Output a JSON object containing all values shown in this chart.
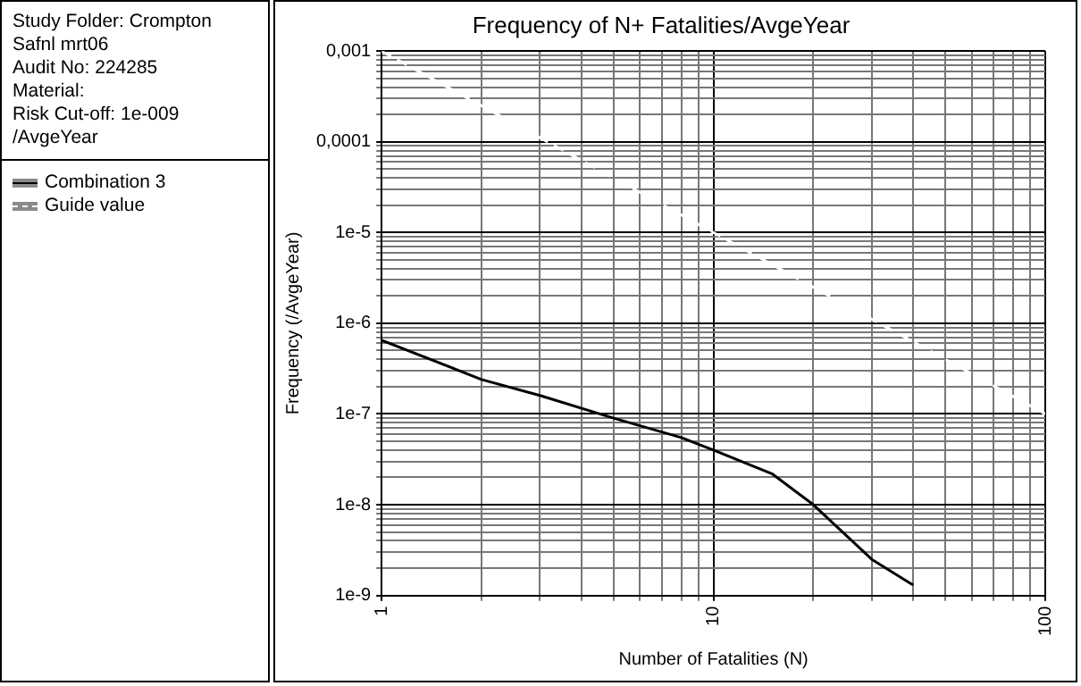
{
  "chart_data": {
    "type": "line",
    "title": "Frequency of N+ Fatalities/AvgeYear",
    "xlabel": "Number of Fatalities (N)",
    "ylabel": "Frequency (/AvgeYear)",
    "annotations": [
      "Study Folder: Crompton Safnl mrt06",
      "Audit No: 224285",
      "Material:",
      "Risk Cut-off: 1e-009 /AvgeYear"
    ],
    "log": "xy",
    "grid": true,
    "legend": "left",
    "marker": "none",
    "xlim": [
      1,
      100
    ],
    "ylim": [
      1e-09,
      0.001
    ],
    "xticks": [
      1,
      {
        "value": 2,
        "label": null
      },
      {
        "value": 3,
        "label": null
      },
      {
        "value": 4,
        "label": null
      },
      {
        "value": 5,
        "label": null
      },
      {
        "value": 6,
        "label": null
      },
      {
        "value": 7,
        "label": null
      },
      {
        "value": 8,
        "label": null
      },
      {
        "value": 9,
        "label": null
      },
      10,
      {
        "value": 20,
        "label": null
      },
      {
        "value": 30,
        "label": null
      },
      {
        "value": 40,
        "label": null
      },
      {
        "value": 50,
        "label": null
      },
      {
        "value": 60,
        "label": null
      },
      {
        "value": 70,
        "label": null
      },
      {
        "value": 80,
        "label": null
      },
      {
        "value": 90,
        "label": null
      },
      100
    ],
    "yticks": [
      {
        "value": 1e-09,
        "label": "1e-9"
      },
      {
        "value": 2e-09,
        "label": null
      },
      {
        "value": 3e-09,
        "label": null
      },
      {
        "value": 4e-09,
        "label": null
      },
      {
        "value": 5e-09,
        "label": null
      },
      {
        "value": 6e-09,
        "label": null
      },
      {
        "value": 7e-09,
        "label": null
      },
      {
        "value": 8e-09,
        "label": null
      },
      {
        "value": 9e-09,
        "label": null
      },
      {
        "value": 1e-08,
        "label": "1e-8"
      },
      {
        "value": 2e-08,
        "label": null
      },
      {
        "value": 3e-08,
        "label": null
      },
      {
        "value": 4e-08,
        "label": null
      },
      {
        "value": 5e-08,
        "label": null
      },
      {
        "value": 6e-08,
        "label": null
      },
      {
        "value": 7e-08,
        "label": null
      },
      {
        "value": 8e-08,
        "label": null
      },
      {
        "value": 9e-08,
        "label": null
      },
      {
        "value": 1e-07,
        "label": "1e-7"
      },
      {
        "value": 2e-07,
        "label": null
      },
      {
        "value": 3e-07,
        "label": null
      },
      {
        "value": 4e-07,
        "label": null
      },
      {
        "value": 5e-07,
        "label": null
      },
      {
        "value": 6e-07,
        "label": null
      },
      {
        "value": 7e-07,
        "label": null
      },
      {
        "value": 8e-07,
        "label": null
      },
      {
        "value": 9e-07,
        "label": null
      },
      {
        "value": 1e-06,
        "label": "1e-6"
      },
      {
        "value": 2e-06,
        "label": null
      },
      {
        "value": 3e-06,
        "label": null
      },
      {
        "value": 4e-06,
        "label": null
      },
      {
        "value": 5e-06,
        "label": null
      },
      {
        "value": 6e-06,
        "label": null
      },
      {
        "value": 7e-06,
        "label": null
      },
      {
        "value": 8e-06,
        "label": null
      },
      {
        "value": 9e-06,
        "label": null
      },
      {
        "value": 1e-05,
        "label": "1e-5"
      },
      {
        "value": 2e-05,
        "label": null
      },
      {
        "value": 3e-05,
        "label": null
      },
      {
        "value": 4e-05,
        "label": null
      },
      {
        "value": 5e-05,
        "label": null
      },
      {
        "value": 6e-05,
        "label": null
      },
      {
        "value": 7e-05,
        "label": null
      },
      {
        "value": 8e-05,
        "label": null
      },
      {
        "value": 9e-05,
        "label": null
      },
      {
        "value": 0.0001,
        "label": "0,0001"
      },
      {
        "value": 0.0002,
        "label": null
      },
      {
        "value": 0.0003,
        "label": null
      },
      {
        "value": 0.0004,
        "label": null
      },
      {
        "value": 0.0005,
        "label": null
      },
      {
        "value": 0.0006,
        "label": null
      },
      {
        "value": 0.0007,
        "label": null
      },
      {
        "value": 0.0008,
        "label": null
      },
      {
        "value": 0.0009,
        "label": null
      },
      {
        "value": 0.001,
        "label": "0,001"
      }
    ],
    "series": [
      {
        "name": "Combination 3",
        "color": "#000000",
        "x": [
          1,
          2,
          3,
          5,
          8,
          10,
          15,
          20,
          30,
          40
        ],
        "values": [
          6.5e-07,
          2.4e-07,
          1.6e-07,
          9e-08,
          5.5e-08,
          4e-08,
          2.2e-08,
          1e-08,
          2.5e-09,
          1.3e-09
        ]
      },
      {
        "name": "Guide value",
        "color": "#ffffff",
        "line_style": "dashed",
        "x": [
          1,
          100
        ],
        "values": [
          0.001,
          1e-07
        ]
      }
    ]
  }
}
